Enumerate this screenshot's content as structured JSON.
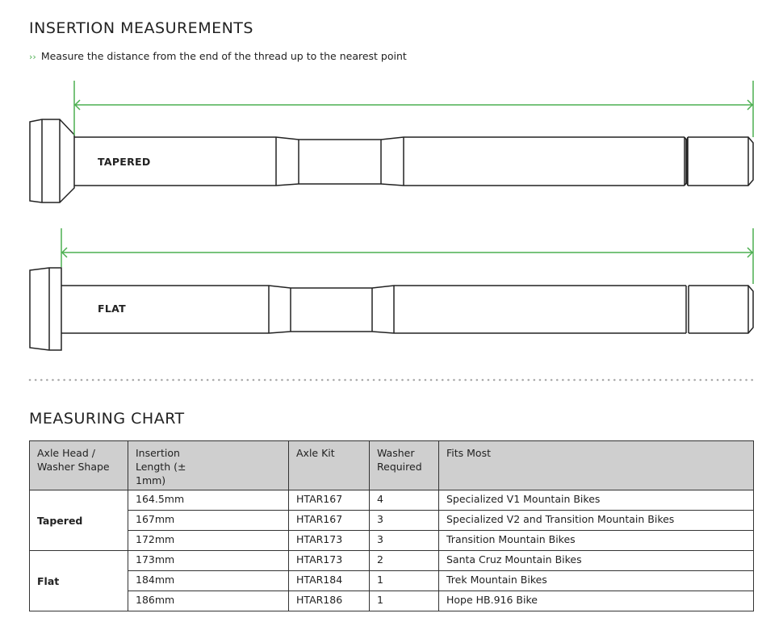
{
  "insertion": {
    "title": "INSERTION MEASUREMENTS",
    "instruction": "Measure the distance from the end of the thread up to the nearest point",
    "instruction_icon": "double-chevron-right-icon",
    "axles": [
      {
        "label": "TAPERED"
      },
      {
        "label": "FLAT"
      }
    ],
    "dimension_color": "#4caf50"
  },
  "chart": {
    "title": "MEASURING CHART",
    "headers": [
      "Axle Head / Washer Shape",
      "Insertion Length (± 1mm)",
      "Axle Kit",
      "Washer Required",
      "Fits Most"
    ],
    "groups": [
      {
        "shape": "Tapered",
        "rows": [
          {
            "length": "164.5mm",
            "kit": "HTAR167",
            "washer": "4",
            "fits": "Specialized V1 Mountain Bikes"
          },
          {
            "length": "167mm",
            "kit": "HTAR167",
            "washer": "3",
            "fits": "Specialized V2 and Transition Mountain Bikes"
          },
          {
            "length": "172mm",
            "kit": "HTAR173",
            "washer": "3",
            "fits": "Transition Mountain Bikes"
          }
        ]
      },
      {
        "shape": "Flat",
        "rows": [
          {
            "length": "173mm",
            "kit": "HTAR173",
            "washer": "2",
            "fits": "Santa Cruz Mountain Bikes"
          },
          {
            "length": "184mm",
            "kit": "HTAR184",
            "washer": "1",
            "fits": "Trek Mountain Bikes"
          },
          {
            "length": "186mm",
            "kit": "HTAR186",
            "washer": "1",
            "fits": "Hope HB.916 Bike"
          }
        ]
      }
    ]
  }
}
